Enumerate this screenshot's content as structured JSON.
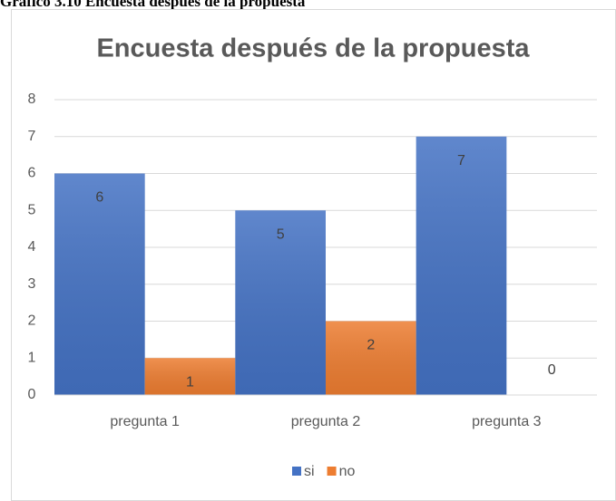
{
  "caption": "Gráfico 3.10 Encuesta después de la propuesta",
  "chart_data": {
    "type": "bar",
    "title": "Encuesta después de la propuesta",
    "categories": [
      "pregunta 1",
      "pregunta 2",
      "pregunta 3"
    ],
    "series": [
      {
        "name": "si",
        "color": "#4472c4",
        "values": [
          6,
          5,
          7
        ]
      },
      {
        "name": "no",
        "color": "#ed7d31",
        "values": [
          1,
          2,
          0
        ]
      }
    ],
    "ylim": [
      0,
      8
    ],
    "yticks": [
      0,
      1,
      2,
      3,
      4,
      5,
      6,
      7,
      8
    ],
    "grid": true,
    "legend": "bottom"
  }
}
